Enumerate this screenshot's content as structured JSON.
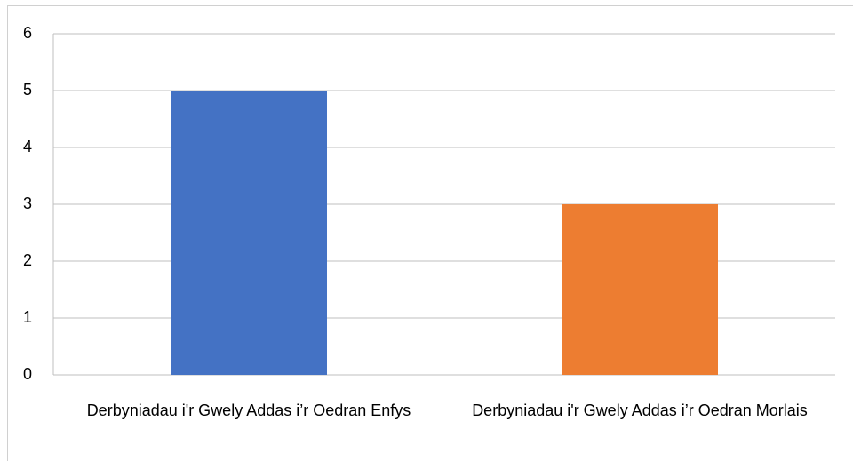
{
  "chart_data": {
    "type": "bar",
    "categories": [
      "Derbyniadau i'r Gwely Addas i’r Oedran Enfys",
      "Derbyniadau i'r Gwely Addas i’r Oedran Morlais"
    ],
    "values": [
      5,
      3
    ],
    "colors": [
      "#4472c4",
      "#ed7d31"
    ],
    "ylim": [
      0,
      6
    ],
    "yticks": [
      0,
      1,
      2,
      3,
      4,
      5,
      6
    ],
    "grid": true
  }
}
